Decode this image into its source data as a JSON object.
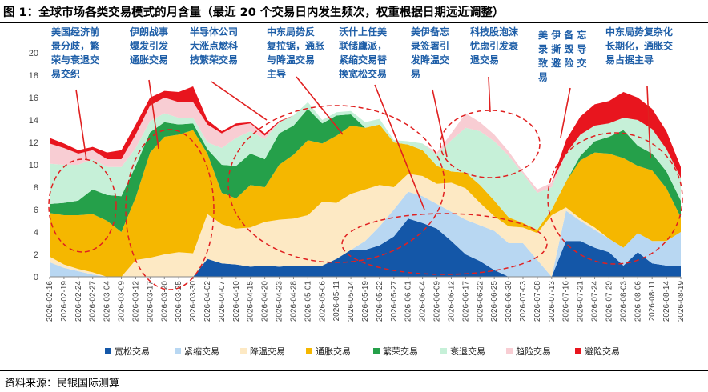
{
  "figure": {
    "title": "图 1：全球市场各类交易模式的月含量（最近 20 个交易日内发生频次，权重根据日期远近调整）",
    "source": "资料来源：民银国际测算"
  },
  "annotations": [
    {
      "text": "美国经济前景分歧，繁荣与衰退交易交织",
      "lines": [
        "美国经济前",
        "景分歧，繁",
        "荣与衰退交",
        "易交织"
      ]
    },
    {
      "text": "伊朗战事爆发引发通胀交易",
      "lines": [
        "伊朗战事",
        "爆发引发",
        "通胀交易"
      ]
    },
    {
      "text": "半导体公司大涨点燃科技繁荣交易",
      "lines": [
        "半导体公司",
        "大涨点燃科",
        "技繁荣交易"
      ]
    },
    {
      "text": "中东局势反复拉锯，通胀与降温交易主导",
      "lines": [
        "中东局势反",
        "复拉锯，通胀",
        "与降温交易",
        "主导"
      ]
    },
    {
      "text": "沃什上任美联储鹰派，紧缩交易替换宽松交易",
      "lines": [
        "沃什上任美",
        "联储鹰派，",
        "紧缩交易替",
        "换宽松交易"
      ]
    },
    {
      "text": "美伊备忘录签署引发降温交易",
      "lines": [
        "美伊备忘",
        "录签署引",
        "发降温交",
        "易"
      ]
    },
    {
      "text": "科技股泡沫忧虑引发衰退交易",
      "lines": [
        "科技股泡沫",
        "忧虑引发衰",
        "退交易"
      ]
    },
    {
      "text": "美伊备忘录撕毁导致避险交易",
      "lines": [
        "美 伊 备 忘",
        "录 撕 毁 导",
        "致 避 险 交",
        "易"
      ]
    },
    {
      "text": "中东局势复杂化长期化，通胀交易占据主导",
      "lines": [
        "中东局势复杂化",
        "长期化，通胀交",
        "易占据主导"
      ]
    }
  ],
  "chart_data": {
    "type": "area",
    "stacked": true,
    "title": "",
    "xlabel": "",
    "ylabel": "",
    "ylim": [
      0,
      20
    ],
    "yticks": [
      0,
      2,
      4,
      6,
      8,
      10,
      12,
      14,
      16,
      18,
      20
    ],
    "grid": false,
    "legend_position": "bottom",
    "x_tick_labels": [
      "2026-02-16",
      "2026-02-19",
      "2026-02-24",
      "2026-02-27",
      "2026-03-04",
      "2026-03-09",
      "2026-03-12",
      "2026-03-17",
      "2026-03-20",
      "2026-03-25",
      "2026-03-30",
      "2026-04-02",
      "2026-04-07",
      "2026-04-10",
      "2026-04-15",
      "2026-04-20",
      "2026-04-23",
      "2026-04-28",
      "2026-05-01",
      "2026-05-06",
      "2026-05-11",
      "2026-05-14",
      "2026-05-19",
      "2026-05-22",
      "2026-05-27",
      "2026-06-01",
      "2026-06-04",
      "2026-06-09",
      "2026-06-12",
      "2026-06-17",
      "2026-06-22",
      "2026-06-25",
      "2026-06-30",
      "2026-07-03",
      "2026-07-08",
      "2026-07-13",
      "2026-07-16",
      "2026-07-21",
      "2026-07-24",
      "2026-07-29",
      "2026-08-03",
      "2026-08-06",
      "2026-08-11",
      "2026-08-14",
      "2026-08-19"
    ],
    "x": [
      "2026-02-16",
      "2026-02-19",
      "2026-02-24",
      "2026-02-27",
      "2026-03-04",
      "2026-03-09",
      "2026-03-12",
      "2026-03-17",
      "2026-03-20",
      "2026-03-25",
      "2026-03-30",
      "2026-04-02",
      "2026-04-07",
      "2026-04-10",
      "2026-04-15",
      "2026-04-20",
      "2026-04-23",
      "2026-04-28",
      "2026-05-01",
      "2026-05-06",
      "2026-05-11",
      "2026-05-14",
      "2026-05-19",
      "2026-05-22",
      "2026-05-27",
      "2026-06-01",
      "2026-06-04",
      "2026-06-09",
      "2026-06-12",
      "2026-06-17",
      "2026-06-22",
      "2026-06-25",
      "2026-06-30",
      "2026-07-03",
      "2026-07-08",
      "2026-07-13",
      "2026-07-16",
      "2026-07-21",
      "2026-07-24",
      "2026-07-29",
      "2026-08-03",
      "2026-08-06",
      "2026-08-11",
      "2026-08-14",
      "2026-08-19"
    ],
    "series": [
      {
        "name": "宽松交易",
        "color": "#1457a8",
        "values": [
          0,
          0,
          0,
          0,
          0,
          0,
          0,
          0,
          0,
          0,
          0,
          1.6,
          1.2,
          1.1,
          0.9,
          1.0,
          0.9,
          1.0,
          1.0,
          1.0,
          1.6,
          2.4,
          2.4,
          2.8,
          3.6,
          5.2,
          4.8,
          4.3,
          3.2,
          2.0,
          1.4,
          0.6,
          0,
          0,
          0,
          0,
          3.2,
          3.2,
          2.6,
          2.2,
          1.0,
          2.2,
          1.2,
          1.0,
          1.0
        ]
      },
      {
        "name": "紧缩交易",
        "color": "#b8d7f2",
        "values": [
          1.3,
          0.8,
          0.5,
          0.2,
          0,
          0,
          0,
          0,
          0,
          0,
          0,
          0,
          0,
          0,
          0,
          0,
          0,
          0,
          0,
          0,
          0,
          0,
          0.8,
          1.7,
          2.4,
          2.4,
          2.4,
          2.2,
          2.6,
          3.1,
          3.2,
          3.5,
          3.0,
          3.0,
          1.5,
          0,
          2.7,
          1.8,
          1.6,
          1.2,
          1.6,
          1.7,
          2.0,
          2.2,
          3.0
        ]
      },
      {
        "name": "降温交易",
        "color": "#fde9c4",
        "values": [
          0.5,
          0.3,
          0.2,
          0.2,
          0,
          0,
          1.5,
          1.7,
          2.0,
          2.2,
          2.1,
          4.0,
          3.5,
          3.2,
          3.5,
          3.9,
          4.2,
          4.2,
          4.5,
          5.7,
          5.0,
          5.0,
          4.6,
          3.7,
          2.0,
          1.6,
          1.8,
          1.8,
          2.6,
          2.8,
          2.0,
          1.3,
          1.5,
          1.4,
          2.4,
          5.5,
          0.3,
          0.2,
          0.2,
          0,
          0,
          0,
          0,
          0,
          0
        ]
      },
      {
        "name": "通胀交易",
        "color": "#f5b700",
        "values": [
          3.9,
          4.4,
          4.8,
          5.2,
          5.0,
          4.0,
          5.6,
          9.4,
          10.5,
          10.5,
          11.0,
          5.4,
          2.8,
          2.7,
          3.8,
          3.1,
          4.9,
          5.7,
          6.7,
          5.2,
          6.0,
          6.1,
          5.5,
          5.4,
          4.0,
          2.6,
          2.3,
          1.6,
          1.0,
          1.4,
          1.6,
          1.4,
          0.8,
          0.4,
          0.3,
          0.5,
          2.3,
          5.2,
          6.7,
          7.6,
          8.0,
          6.0,
          6.3,
          4.7,
          1.3
        ]
      },
      {
        "name": "繁荣交易",
        "color": "#25a04a",
        "values": [
          0.8,
          1.1,
          1.3,
          2.2,
          2.3,
          3.2,
          2.8,
          1.8,
          1.3,
          0.9,
          0.6,
          0.4,
          2.5,
          2.9,
          2.8,
          2.5,
          2.8,
          2.6,
          2.8,
          1.8,
          1.8,
          1.0,
          0,
          0,
          0,
          0,
          0,
          0,
          0,
          0,
          0,
          0,
          0,
          0,
          0,
          0,
          0,
          0.4,
          1.0,
          1.5,
          2.5,
          1.8,
          1.5,
          1.5,
          1.5
        ]
      },
      {
        "name": "衰退交易",
        "color": "#c6f0d8",
        "values": [
          3.6,
          3.4,
          3.2,
          2.7,
          2.5,
          2.6,
          1.6,
          1.0,
          0.8,
          0.6,
          0.5,
          0.6,
          1.5,
          2.5,
          2.0,
          1.8,
          1.0,
          0.9,
          0.6,
          0.3,
          0.3,
          0.3,
          0.5,
          0.5,
          0.2,
          0.3,
          0.6,
          1.0,
          2.8,
          4.0,
          4.8,
          5.3,
          5.5,
          4.4,
          3.3,
          2.0,
          2.5,
          1.9,
          1.4,
          1.2,
          1.1,
          2.3,
          2.2,
          2.0,
          2.0
        ]
      },
      {
        "name": "趋险交易",
        "color": "#f8cdd3",
        "values": [
          1.8,
          1.5,
          1.0,
          0.8,
          0.7,
          0.7,
          1.2,
          1.4,
          1.4,
          1.4,
          1.4,
          1.6,
          1.3,
          1.1,
          0.7,
          0.3,
          0,
          0,
          0,
          0,
          0,
          0,
          0,
          0,
          0,
          0,
          0,
          0.2,
          0.6,
          1.3,
          0.8,
          0.6,
          0.4,
          0.2,
          0.3,
          0.4,
          0,
          0,
          0,
          0,
          0,
          0,
          0,
          0,
          0
        ]
      },
      {
        "name": "避险交易",
        "color": "#e8151e",
        "values": [
          0.5,
          0.4,
          0.3,
          0.3,
          0.6,
          0.8,
          0.9,
          0.7,
          0.6,
          0.9,
          1.4,
          0.4,
          0.2,
          0.2,
          0.1,
          0.2,
          0.1,
          0,
          0,
          0,
          0,
          0,
          0,
          0,
          0,
          0,
          0,
          0,
          0,
          0,
          0,
          0,
          0,
          0,
          0,
          0,
          1.2,
          1.6,
          1.9,
          2.0,
          2.3,
          2.0,
          1.8,
          1.6,
          1.0
        ]
      }
    ]
  }
}
